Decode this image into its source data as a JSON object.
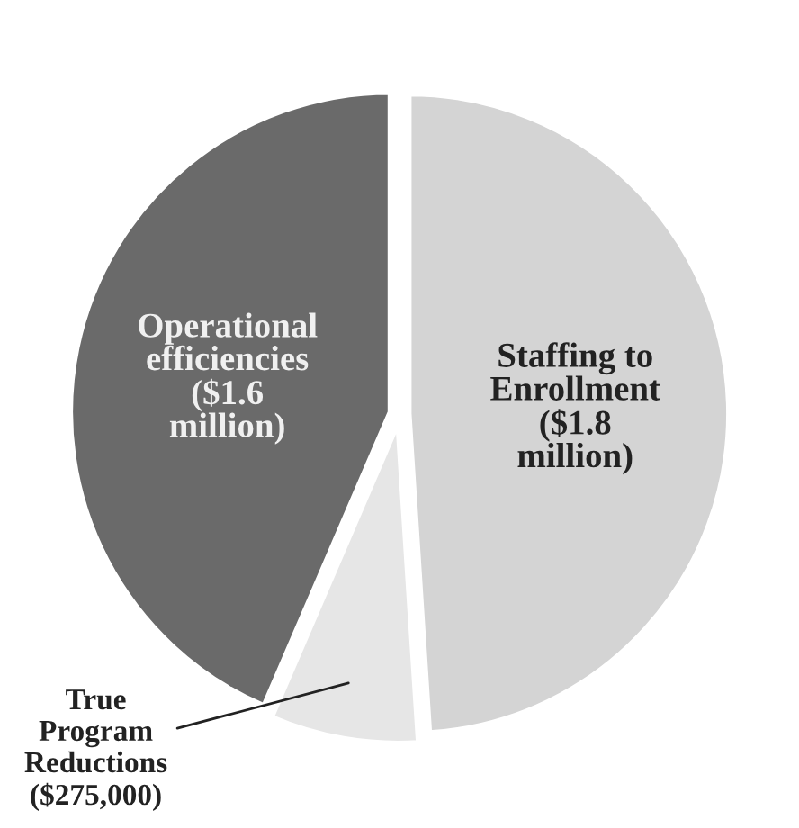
{
  "chart_data": {
    "type": "pie",
    "categories": [
      "Staffing to Enrollment",
      "True Program Reductions",
      "Operational efficiencies"
    ],
    "values": [
      1800000,
      275000,
      1600000
    ],
    "value_labels": [
      "($1.8 million)",
      "($275,000)",
      "($1.6 million)"
    ],
    "colors": [
      "#d4d4d4",
      "#e6e6e6",
      "#6a6a6a"
    ],
    "legend": false
  }
}
